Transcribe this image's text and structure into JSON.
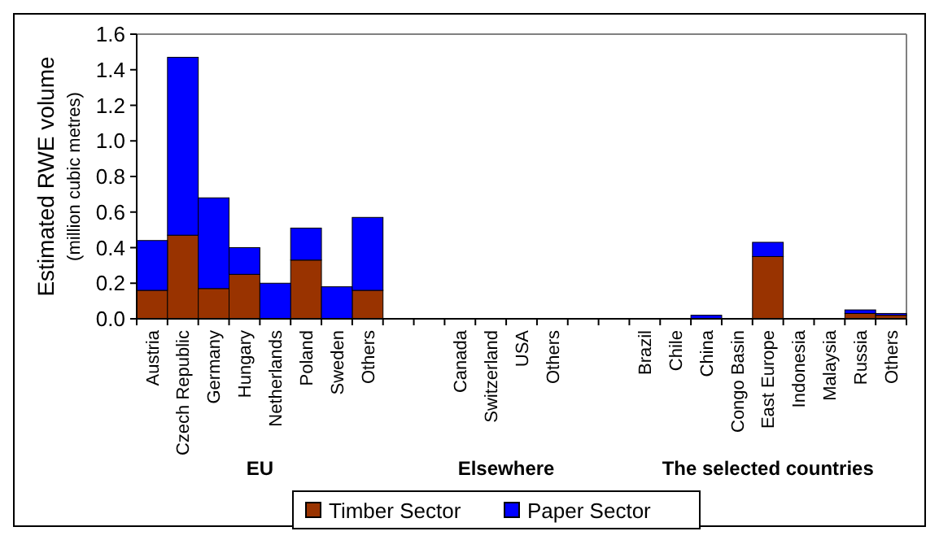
{
  "chart_data": {
    "type": "bar",
    "stacked": true,
    "ylabel": "Estimated RWE volume\n(million cubic metres)",
    "categories": [
      "Austria",
      "Czech Republic",
      "Germany",
      "Hungary",
      "Netherlands",
      "Poland",
      "Sweden",
      "Others",
      null,
      null,
      "Canada",
      "Switzerland",
      "USA",
      "Others",
      null,
      null,
      "Brazil",
      "Chile",
      "China",
      "Congo Basin",
      "East Europe",
      "Indonesia",
      "Malaysia",
      "Russia",
      "Others"
    ],
    "series": [
      {
        "name": "Timber Sector",
        "color": "#993300",
        "values": [
          0.16,
          0.47,
          0.17,
          0.25,
          0,
          0.33,
          0,
          0.16,
          null,
          null,
          0,
          0,
          0,
          0,
          null,
          null,
          0,
          0,
          0,
          0,
          0.35,
          0,
          0,
          0.03,
          0.02
        ]
      },
      {
        "name": "Paper Sector",
        "color": "#0000ff",
        "values": [
          0.28,
          1.0,
          0.51,
          0.15,
          0.2,
          0.18,
          0.18,
          0.41,
          null,
          null,
          0,
          0,
          0,
          0,
          null,
          null,
          0,
          0,
          0.02,
          0,
          0.08,
          0,
          0,
          0.02,
          0.01
        ]
      }
    ],
    "ylim": [
      0,
      1.6
    ],
    "yticks": [
      {
        "value": 0,
        "label": "0.0"
      },
      {
        "value": 0.2,
        "label": "0.2"
      },
      {
        "value": 0.4,
        "label": "0.4"
      },
      {
        "value": 0.6,
        "label": "0.6"
      },
      {
        "value": 0.8,
        "label": "0.8"
      },
      {
        "value": 1,
        "label": "1.0"
      },
      {
        "value": 1.2,
        "label": "1.2"
      },
      {
        "value": 1.4,
        "label": "1.4"
      },
      {
        "value": 1.6,
        "label": "1.6"
      }
    ],
    "annotations": [
      "EU",
      "Elsewhere",
      "The selected countries"
    ],
    "legend": "bottom"
  }
}
